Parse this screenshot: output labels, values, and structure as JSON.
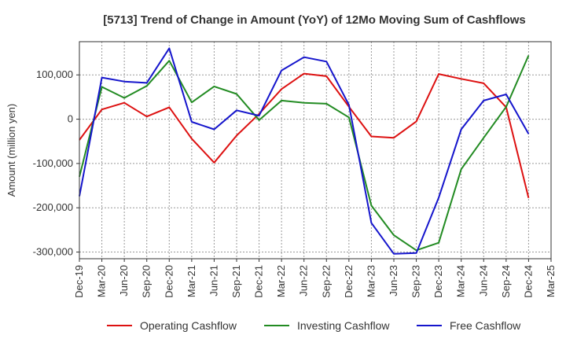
{
  "chart_data": {
    "type": "line",
    "title": "[5713]  Trend of Change in Amount (YoY) of 12Mo Moving Sum of Cashflows",
    "xlabel": "",
    "ylabel": "Amount (million yen)",
    "ylim": [
      -315000,
      175000
    ],
    "yticks": [
      100000,
      0,
      -100000,
      -200000,
      -300000
    ],
    "ytick_labels": [
      "100,000",
      "0",
      "-100,000",
      "-200,000",
      "-300,000"
    ],
    "x_tick_labels": [
      "Dec-19",
      "Mar-20",
      "Jun-20",
      "Sep-20",
      "Dec-20",
      "Mar-21",
      "Jun-21",
      "Sep-21",
      "Dec-21",
      "Mar-22",
      "Jun-22",
      "Sep-22",
      "Dec-22",
      "Mar-23",
      "Jun-23",
      "Sep-23",
      "Dec-23",
      "Mar-24",
      "Jun-24",
      "Sep-24",
      "Dec-24",
      "Mar-25"
    ],
    "grid": true,
    "legend_position": "bottom",
    "series": [
      {
        "name": "Operating Cashflow",
        "color": "#dd1111",
        "values": [
          -47000,
          22000,
          37000,
          6000,
          27000,
          -44000,
          -98000,
          -37000,
          12000,
          68000,
          103000,
          97000,
          28000,
          -39000,
          -42000,
          -5000,
          102000,
          91000,
          81000,
          27000,
          -178000
        ]
      },
      {
        "name": "Investing Cashflow",
        "color": "#228b22",
        "values": [
          -130000,
          73000,
          48000,
          75000,
          132000,
          38000,
          74000,
          57000,
          -2000,
          42000,
          37000,
          35000,
          4000,
          -195000,
          -262000,
          -296000,
          -279000,
          -113000,
          -42000,
          28000,
          144000
        ]
      },
      {
        "name": "Free Cashflow",
        "color": "#1515cc",
        "values": [
          -174000,
          94000,
          85000,
          82000,
          160000,
          -6000,
          -23000,
          20000,
          8000,
          110000,
          140000,
          130000,
          32000,
          -234000,
          -304000,
          -302000,
          -177000,
          -23000,
          42000,
          56000,
          -33000
        ]
      }
    ]
  }
}
